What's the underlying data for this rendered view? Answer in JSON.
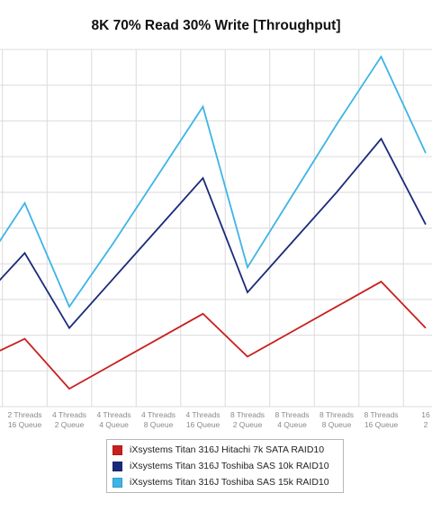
{
  "chart_data": {
    "type": "line",
    "title": "8K 70% Read 30% Write [Throughput]",
    "xlabel": "",
    "ylabel": "",
    "grid": true,
    "legend_position": "bottom",
    "categories": [
      [
        "Threads",
        "Queue"
      ],
      [
        "2 Threads",
        "16 Queue"
      ],
      [
        "4 Threads",
        "2 Queue"
      ],
      [
        "4 Threads",
        "4 Queue"
      ],
      [
        "4 Threads",
        "8 Queue"
      ],
      [
        "4 Threads",
        "16 Queue"
      ],
      [
        "8 Threads",
        "2 Queue"
      ],
      [
        "8 Threads",
        "4 Queue"
      ],
      [
        "8 Threads",
        "8 Queue"
      ],
      [
        "8 Threads",
        "16 Queue"
      ],
      [
        "16",
        "2"
      ]
    ],
    "ylim": [
      0,
      10
    ],
    "series": [
      {
        "name": "iXsystems Titan 316J Hitachi 7k SATA RAID10",
        "color": "#c8201e",
        "values": [
          1.3,
          1.9,
          0.5,
          1.2,
          1.9,
          2.6,
          1.4,
          2.1,
          2.8,
          3.5,
          2.2
        ]
      },
      {
        "name": "iXsystems Titan 316J Toshiba SAS 10k RAID10",
        "color": "#1a2a7a",
        "values": [
          2.95,
          4.3,
          2.2,
          3.6,
          5.0,
          6.4,
          3.2,
          4.6,
          6.0,
          7.5,
          5.1
        ]
      },
      {
        "name": "iXsystems Titan 316J Toshiba SAS 15k RAID10",
        "color": "#3eb4e6",
        "values": [
          3.8,
          5.7,
          2.8,
          4.6,
          6.5,
          8.4,
          3.9,
          5.9,
          7.9,
          9.8,
          7.1
        ]
      }
    ]
  }
}
